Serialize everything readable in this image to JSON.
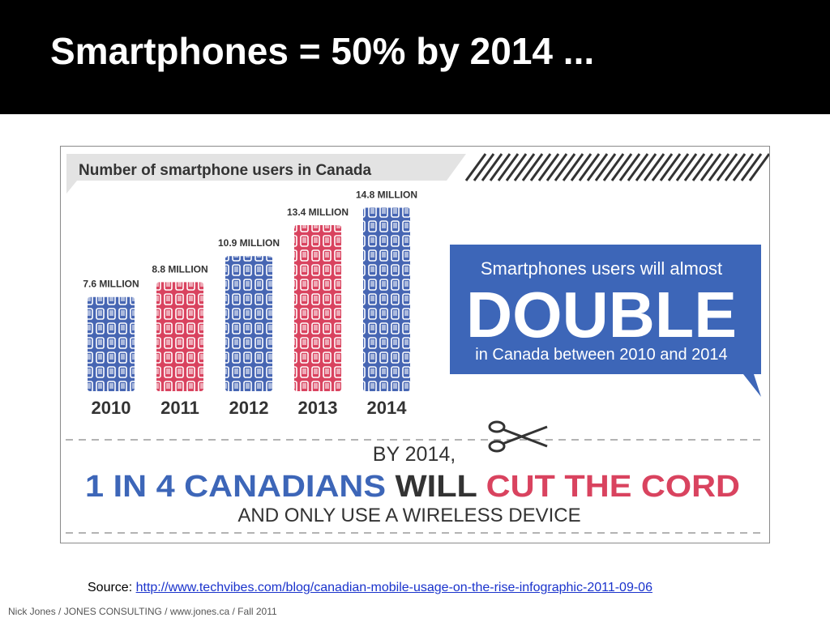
{
  "slide": {
    "title": "Smartphones = 50% by 2014 ...",
    "source_label": "Source:",
    "source_url": "http://www.techvibes.com/blog/canadian-mobile-usage-on-the-rise-infographic-2011-09-06",
    "footer": "Nick Jones / JONES CONSULTING / www.jones.ca / Fall 2011"
  },
  "colors": {
    "blue": "#4766b3",
    "red": "#d9435f",
    "banner_gray": "#e3e3e3",
    "dark_text": "#333333",
    "callout_blue": "#3d66b8"
  },
  "chart_data": {
    "type": "bar",
    "title": "Number of smartphone users in Canada",
    "categories": [
      "2010",
      "2011",
      "2012",
      "2013",
      "2014"
    ],
    "values": [
      7.6,
      8.8,
      10.9,
      13.4,
      14.8
    ],
    "value_labels": [
      "7.6 MILLION",
      "8.8 MILLION",
      "10.9 MILLION",
      "13.4 MILLION",
      "14.8 MILLION"
    ],
    "bar_colors": [
      "blue",
      "red",
      "blue",
      "red",
      "blue"
    ],
    "grid": false
  },
  "callout": {
    "line1": "Smartphones users will almost",
    "line2": "DOUBLE",
    "line3": "in Canada between 2010 and 2014"
  },
  "cord": {
    "line1": "BY 2014,",
    "blue_part": "1 IN 4 CANADIANS",
    "dark_part": "WILL",
    "red_part": "CUT THE CORD",
    "line3": "AND ONLY USE A WIRELESS DEVICE",
    "icon": "scissors-icon"
  }
}
